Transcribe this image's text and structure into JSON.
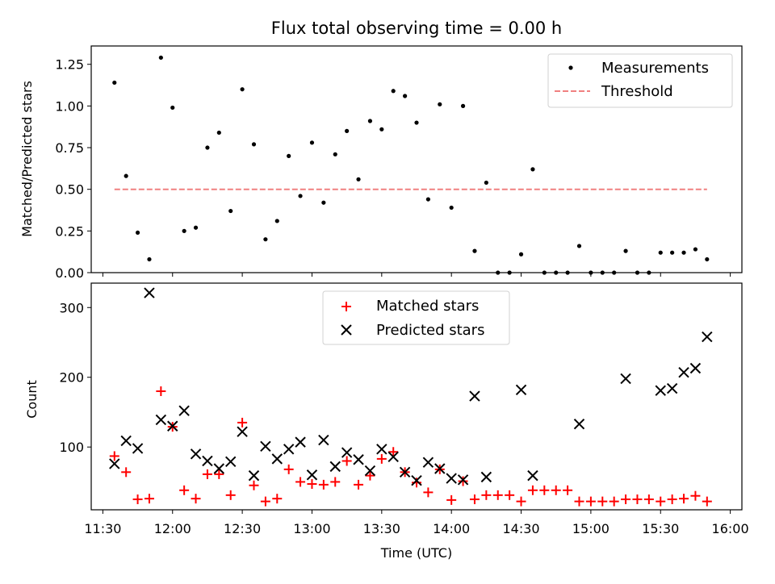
{
  "chart_data": [
    {
      "type": "scatter",
      "title": "Flux total observing time = 0.00 h",
      "ylabel": "Matched/Predicted stars",
      "xlabel": "",
      "xlim": [
        "11:25",
        "16:05"
      ],
      "ylim": [
        0,
        1.36
      ],
      "yticks": [
        "0.00",
        "0.25",
        "0.50",
        "0.75",
        "1.00",
        "1.25"
      ],
      "ytick_values": [
        0,
        0.25,
        0.5,
        0.75,
        1.0,
        1.25
      ],
      "grid": false,
      "legend_position": "top-right",
      "series": [
        {
          "name": "Measurements",
          "marker": "dot",
          "color": "#000000",
          "x": [
            "11:35",
            "11:40",
            "11:45",
            "11:50",
            "11:55",
            "12:00",
            "12:05",
            "12:10",
            "12:15",
            "12:20",
            "12:25",
            "12:30",
            "12:35",
            "12:40",
            "12:45",
            "12:50",
            "12:55",
            "13:00",
            "13:05",
            "13:10",
            "13:15",
            "13:20",
            "13:25",
            "13:30",
            "13:35",
            "13:40",
            "13:45",
            "13:50",
            "13:55",
            "14:00",
            "14:05",
            "14:10",
            "14:15",
            "14:20",
            "14:25",
            "14:30",
            "14:35",
            "14:40",
            "14:45",
            "14:50",
            "14:55",
            "15:00",
            "15:05",
            "15:10",
            "15:15",
            "15:20",
            "15:25",
            "15:30",
            "15:35",
            "15:40",
            "15:45",
            "15:50"
          ],
          "y": [
            1.14,
            0.58,
            0.24,
            0.08,
            1.29,
            0.99,
            0.25,
            0.27,
            0.75,
            0.84,
            0.37,
            1.1,
            0.77,
            0.2,
            0.31,
            0.7,
            0.46,
            0.78,
            0.42,
            0.71,
            0.85,
            0.56,
            0.91,
            0.86,
            1.09,
            1.06,
            0.9,
            0.44,
            1.01,
            0.39,
            1.0,
            0.13,
            0.54,
            0.0,
            0.0,
            0.11,
            0.62,
            0.0,
            0.0,
            0.0,
            0.16,
            0.0,
            0.0,
            0.0,
            0.13,
            0.0,
            0.0,
            0.12,
            0.12,
            0.12,
            0.14,
            0.08
          ]
        },
        {
          "name": "Threshold",
          "marker": "dashed-line",
          "color": "#f08080",
          "x": [
            "11:35",
            "15:50"
          ],
          "y": [
            0.5,
            0.5
          ]
        }
      ]
    },
    {
      "type": "scatter",
      "title": "",
      "ylabel": "Count",
      "xlabel": "Time (UTC)",
      "xlim": [
        "11:25",
        "16:05"
      ],
      "ylim": [
        10,
        335
      ],
      "yticks": [
        "100",
        "200",
        "300"
      ],
      "ytick_values": [
        100,
        200,
        300
      ],
      "xticks": [
        "11:30",
        "12:00",
        "12:30",
        "13:00",
        "13:30",
        "14:00",
        "14:30",
        "15:00",
        "15:30",
        "16:00"
      ],
      "grid": false,
      "legend_position": "top-center",
      "series": [
        {
          "name": "Matched stars",
          "marker": "plus",
          "color": "#ff0000",
          "x": [
            "11:35",
            "11:40",
            "11:45",
            "11:50",
            "11:55",
            "12:00",
            "12:05",
            "12:10",
            "12:15",
            "12:20",
            "12:25",
            "12:30",
            "12:35",
            "12:40",
            "12:45",
            "12:50",
            "12:55",
            "13:00",
            "13:05",
            "13:10",
            "13:15",
            "13:20",
            "13:25",
            "13:30",
            "13:35",
            "13:40",
            "13:45",
            "13:50",
            "13:55",
            "14:00",
            "14:05",
            "14:10",
            "14:15",
            "14:20",
            "14:25",
            "14:30",
            "14:35",
            "14:40",
            "14:45",
            "14:50",
            "14:55",
            "15:00",
            "15:05",
            "15:10",
            "15:15",
            "15:20",
            "15:25",
            "15:30",
            "15:35",
            "15:40",
            "15:45",
            "15:50"
          ],
          "y": [
            87,
            64,
            25,
            26,
            180,
            129,
            38,
            26,
            61,
            61,
            31,
            135,
            45,
            22,
            26,
            68,
            50,
            47,
            46,
            50,
            80,
            46,
            59,
            83,
            93,
            64,
            49,
            35,
            68,
            24,
            51,
            25,
            31,
            31,
            31,
            22,
            38,
            38,
            38,
            38,
            22,
            22,
            22,
            22,
            25,
            25,
            25,
            22,
            25,
            26,
            30,
            22
          ]
        },
        {
          "name": "Predicted stars",
          "marker": "x",
          "color": "#000000",
          "x": [
            "11:35",
            "11:40",
            "11:45",
            "11:50",
            "11:55",
            "12:00",
            "12:05",
            "12:10",
            "12:15",
            "12:20",
            "12:25",
            "12:30",
            "12:35",
            "12:40",
            "12:45",
            "12:50",
            "12:55",
            "13:00",
            "13:05",
            "13:10",
            "13:15",
            "13:20",
            "13:25",
            "13:30",
            "13:35",
            "13:40",
            "13:45",
            "13:50",
            "13:55",
            "14:00",
            "14:05",
            "14:10",
            "14:15",
            "14:30",
            "14:35",
            "14:55",
            "15:15",
            "15:30",
            "15:35",
            "15:40",
            "15:45",
            "15:50"
          ],
          "y": [
            76,
            109,
            98,
            321,
            139,
            130,
            152,
            90,
            80,
            69,
            79,
            122,
            59,
            101,
            83,
            97,
            107,
            60,
            110,
            72,
            92,
            82,
            66,
            97,
            86,
            64,
            52,
            78,
            69,
            55,
            53,
            173,
            57,
            182,
            59,
            133,
            198,
            181,
            184,
            207,
            213,
            258
          ]
        }
      ]
    }
  ]
}
